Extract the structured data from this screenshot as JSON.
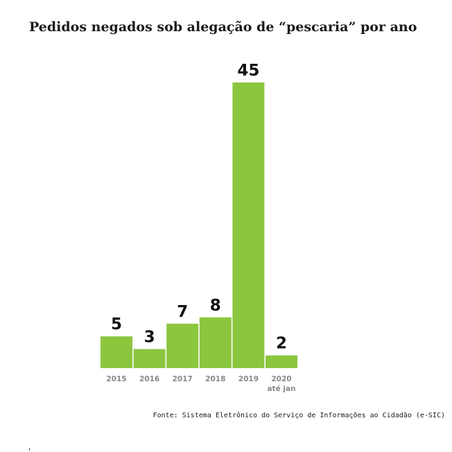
{
  "title": "Pedidos negados sob alegação de “pescaria” por ano",
  "source": "Fonte: Sistema Eletrônico do Serviço de Informações ao Cidadão (e-SIC)",
  "colors": {
    "bar": "#8cc63f",
    "label": "#111111",
    "tick": "#888888"
  },
  "chart_data": {
    "type": "bar",
    "title": "Pedidos negados sob alegação de “pescaria” por ano",
    "categories": [
      "2015",
      "2016",
      "2017",
      "2018",
      "2019",
      "2020"
    ],
    "category_sublabels": [
      "",
      "",
      "",
      "",
      "",
      "até jan"
    ],
    "values": [
      5,
      3,
      7,
      8,
      45,
      2
    ],
    "data_labels": [
      "5",
      "3",
      "7",
      "8",
      "45",
      "2"
    ],
    "ylim": [
      0,
      45
    ],
    "grid": false,
    "legend": "none"
  }
}
